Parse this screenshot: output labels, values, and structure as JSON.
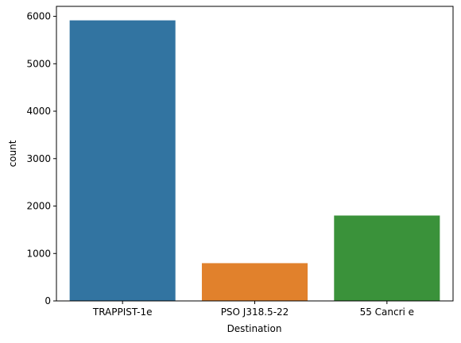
{
  "chart_data": {
    "type": "bar",
    "categories": [
      "TRAPPIST-1e",
      "PSO J318.5-22",
      "55 Cancri e"
    ],
    "values": [
      5915,
      796,
      1800
    ],
    "colors": [
      "#3274a1",
      "#e1812c",
      "#3a923a"
    ],
    "xlabel": "Destination",
    "ylabel": "count",
    "ylim": [
      0,
      6210
    ],
    "yticks": [
      0,
      1000,
      2000,
      3000,
      4000,
      5000,
      6000
    ],
    "grid": false,
    "legend": "none"
  }
}
